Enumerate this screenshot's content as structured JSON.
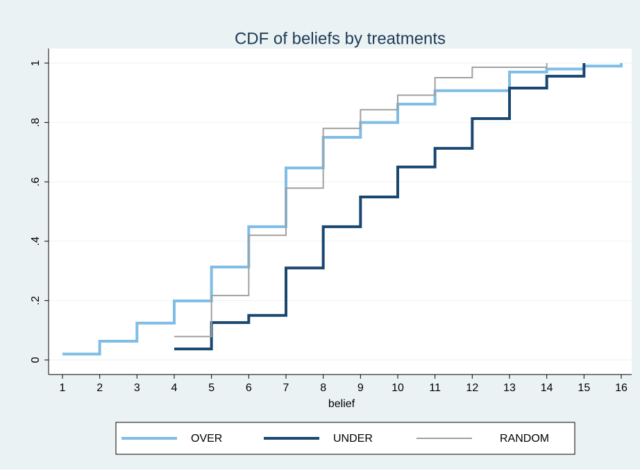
{
  "chart_data": {
    "type": "step",
    "title": "CDF of beliefs by treatments",
    "x_label": "belief",
    "xlim": [
      1,
      16
    ],
    "xticks": [
      1,
      2,
      3,
      4,
      5,
      6,
      7,
      8,
      9,
      10,
      11,
      12,
      13,
      14,
      15,
      16
    ],
    "ylim": [
      0,
      1
    ],
    "yticks": [
      0,
      {
        "value": 0.2,
        "label": ".2"
      },
      {
        "value": 0.4,
        "label": ".4"
      },
      {
        "value": 0.6,
        "label": ".6"
      },
      {
        "value": 0.8,
        "label": ".8"
      },
      1
    ],
    "grid": true,
    "legend": "bottom",
    "series": [
      {
        "name": "OVER",
        "color": "#7fbde6",
        "width": 4,
        "x": [
          1,
          2,
          3,
          4,
          5,
          6,
          7,
          8,
          9,
          10,
          11,
          13,
          14,
          15,
          16
        ],
        "values": [
          0.02,
          0.063,
          0.124,
          0.199,
          0.313,
          0.449,
          0.647,
          0.75,
          0.8,
          0.862,
          0.907,
          0.97,
          0.98,
          0.99,
          1
        ]
      },
      {
        "name": "UNDER",
        "color": "#1a476f",
        "width": 4,
        "x": [
          4,
          5,
          6,
          7,
          8,
          9,
          10,
          11,
          12,
          13,
          14,
          15
        ],
        "values": [
          0.037,
          0.126,
          0.15,
          0.31,
          0.449,
          0.549,
          0.65,
          0.713,
          0.813,
          0.916,
          0.956,
          1
        ]
      },
      {
        "name": "RANDOM",
        "color": "#a0a0a0",
        "width": 2,
        "x": [
          4,
          5,
          6,
          7,
          8,
          9,
          10,
          11,
          12,
          14
        ],
        "values": [
          0.079,
          0.217,
          0.42,
          0.579,
          0.78,
          0.843,
          0.892,
          0.951,
          0.986,
          1
        ]
      }
    ]
  }
}
